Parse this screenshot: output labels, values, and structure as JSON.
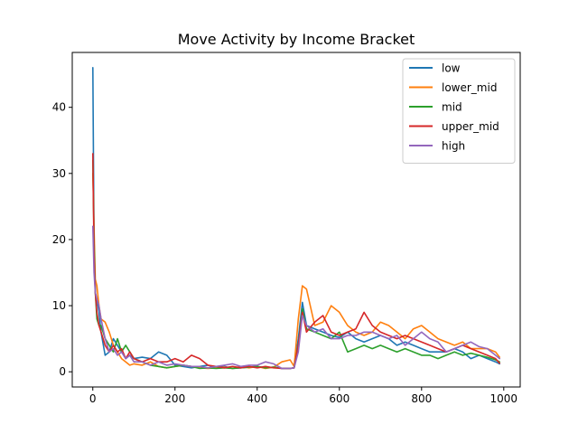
{
  "chart_data": {
    "type": "line",
    "title": "Move Activity by Income Bracket",
    "xlabel": "",
    "ylabel": "",
    "xlim": [
      -50,
      1040
    ],
    "ylim": [
      -2.3,
      48.3
    ],
    "xticks": [
      0,
      200,
      400,
      600,
      800,
      1000
    ],
    "yticks": [
      0,
      10,
      20,
      30,
      40
    ],
    "grid": false,
    "legend_position": "top-right",
    "series": [
      {
        "name": "low",
        "color": "#1f77b4",
        "x": [
          0,
          3,
          6,
          10,
          15,
          20,
          30,
          40,
          50,
          60,
          70,
          80,
          90,
          100,
          120,
          140,
          160,
          180,
          200,
          220,
          240,
          260,
          280,
          300,
          320,
          340,
          360,
          380,
          400,
          420,
          440,
          460,
          480,
          490,
          500,
          510,
          520,
          540,
          560,
          580,
          600,
          620,
          640,
          660,
          680,
          700,
          720,
          740,
          760,
          780,
          800,
          820,
          840,
          860,
          880,
          900,
          920,
          940,
          960,
          980,
          990
        ],
        "values": [
          46,
          20,
          12,
          11,
          9,
          6,
          2.5,
          3,
          5,
          4,
          3,
          2,
          2.5,
          2,
          2.2,
          2,
          3,
          2.5,
          1,
          0.8,
          0.6,
          0.8,
          1,
          0.6,
          0.8,
          0.5,
          0.6,
          0.7,
          0.8,
          0.6,
          0.7,
          0.5,
          0.5,
          0.6,
          5,
          10.5,
          7,
          6.5,
          6,
          5.5,
          5.2,
          6,
          5,
          4.5,
          5,
          5.5,
          5,
          4,
          4.5,
          4,
          3.5,
          3,
          3,
          3,
          3.5,
          3,
          2,
          2.5,
          2,
          1.5,
          1.2
        ]
      },
      {
        "name": "lower_mid",
        "color": "#ff7f0e",
        "x": [
          0,
          3,
          6,
          10,
          15,
          20,
          30,
          40,
          50,
          60,
          70,
          80,
          90,
          100,
          120,
          140,
          160,
          180,
          200,
          220,
          240,
          260,
          280,
          300,
          320,
          340,
          360,
          380,
          400,
          420,
          440,
          460,
          480,
          490,
          500,
          510,
          520,
          540,
          560,
          580,
          600,
          620,
          640,
          660,
          680,
          700,
          720,
          740,
          760,
          780,
          800,
          820,
          840,
          860,
          880,
          900,
          920,
          940,
          960,
          980,
          990
        ],
        "values": [
          30,
          22,
          14,
          13,
          10,
          8,
          7.5,
          6,
          4,
          3,
          2,
          1.5,
          1,
          1.2,
          1,
          1.5,
          0.8,
          0.6,
          0.8,
          1,
          0.8,
          0.6,
          0.5,
          0.6,
          0.7,
          0.5,
          0.8,
          0.6,
          0.8,
          0.5,
          0.7,
          1.5,
          1.8,
          0.8,
          8,
          13,
          12.5,
          7,
          7.5,
          10,
          9,
          7,
          6,
          5.5,
          6,
          7.5,
          7,
          6,
          5,
          6.5,
          7,
          6,
          5,
          4.5,
          4,
          4.5,
          3.5,
          3.5,
          3.5,
          3,
          2.2
        ]
      },
      {
        "name": "mid",
        "color": "#2ca02c",
        "x": [
          0,
          3,
          6,
          10,
          15,
          20,
          30,
          40,
          50,
          60,
          70,
          80,
          90,
          100,
          120,
          140,
          160,
          180,
          200,
          220,
          240,
          260,
          280,
          300,
          320,
          340,
          360,
          380,
          400,
          420,
          440,
          460,
          480,
          490,
          500,
          510,
          520,
          540,
          560,
          580,
          600,
          620,
          640,
          660,
          680,
          700,
          720,
          740,
          760,
          780,
          800,
          820,
          840,
          860,
          880,
          900,
          920,
          940,
          960,
          980,
          990
        ],
        "values": [
          32,
          20,
          12,
          8,
          7,
          7,
          5,
          4,
          3,
          5,
          3,
          4,
          3,
          2,
          1.5,
          1,
          0.8,
          0.6,
          0.8,
          1,
          0.8,
          0.5,
          0.6,
          0.5,
          0.6,
          0.5,
          0.6,
          0.7,
          0.8,
          0.6,
          0.7,
          0.5,
          0.5,
          0.6,
          4,
          9.5,
          6.5,
          6,
          5.5,
          5,
          6,
          3,
          3.5,
          4,
          3.5,
          4,
          3.5,
          3,
          3.5,
          3,
          2.5,
          2.5,
          2,
          2.5,
          3,
          2.5,
          2.8,
          2.5,
          2.2,
          1.8,
          1.5
        ]
      },
      {
        "name": "upper_mid",
        "color": "#d62728",
        "x": [
          0,
          3,
          6,
          10,
          15,
          20,
          30,
          40,
          50,
          60,
          70,
          80,
          90,
          100,
          120,
          140,
          160,
          180,
          200,
          220,
          240,
          260,
          280,
          300,
          320,
          340,
          360,
          380,
          400,
          420,
          440,
          460,
          480,
          490,
          500,
          510,
          520,
          540,
          560,
          580,
          600,
          620,
          640,
          660,
          680,
          700,
          720,
          740,
          760,
          780,
          800,
          820,
          840,
          860,
          880,
          900,
          920,
          940,
          960,
          980,
          990
        ],
        "values": [
          33,
          18,
          12,
          9,
          7,
          6,
          4,
          3,
          4,
          3,
          3.5,
          2,
          3,
          2,
          1.5,
          2,
          1.5,
          1.5,
          2,
          1.5,
          2.5,
          2,
          1,
          0.8,
          0.6,
          0.8,
          0.6,
          0.8,
          0.6,
          0.8,
          0.6,
          0.5,
          0.5,
          0.6,
          4,
          9,
          6,
          7.5,
          8.5,
          6,
          5.5,
          6,
          6.5,
          9,
          7,
          6,
          5.5,
          5,
          5.5,
          5,
          4.5,
          4,
          3.5,
          3,
          3.5,
          4,
          3.5,
          3,
          2.5,
          2,
          1.3
        ]
      },
      {
        "name": "high",
        "color": "#9467bd",
        "x": [
          0,
          3,
          6,
          10,
          15,
          20,
          30,
          40,
          50,
          60,
          70,
          80,
          90,
          100,
          120,
          140,
          160,
          180,
          200,
          220,
          240,
          260,
          280,
          300,
          320,
          340,
          360,
          380,
          400,
          420,
          440,
          460,
          480,
          490,
          500,
          510,
          520,
          540,
          560,
          580,
          600,
          620,
          640,
          660,
          680,
          700,
          720,
          740,
          760,
          780,
          800,
          820,
          840,
          860,
          880,
          900,
          920,
          940,
          960,
          980,
          990
        ],
        "values": [
          22,
          15,
          12,
          11,
          10,
          8,
          5,
          3,
          3.5,
          2.5,
          3,
          2,
          2.5,
          1.5,
          1.5,
          1,
          1.5,
          1,
          1.2,
          1,
          0.8,
          0.8,
          0.6,
          0.8,
          1,
          1.2,
          0.8,
          1,
          1,
          1.5,
          1.2,
          0.5,
          0.5,
          0.6,
          3,
          8.5,
          7,
          6,
          6.5,
          5,
          5,
          5.5,
          5.5,
          6,
          6,
          5.5,
          5,
          5.5,
          4,
          5,
          6,
          5,
          4.5,
          3,
          3.5,
          4,
          4.5,
          3.8,
          3.5,
          2.5,
          2
        ]
      }
    ]
  }
}
